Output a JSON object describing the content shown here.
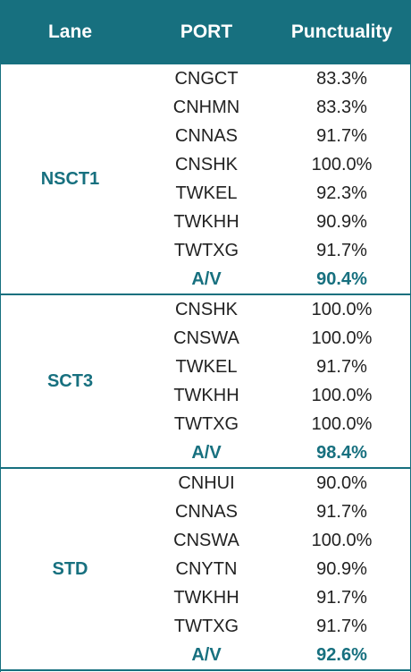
{
  "header": {
    "lane": "Lane",
    "port": "PORT",
    "punctuality": "Punctuality"
  },
  "groups": [
    {
      "lane": "NSCT1",
      "rows": [
        [
          "CNGCT",
          "83.3%"
        ],
        [
          "CNHMN",
          "83.3%"
        ],
        [
          "CNNAS",
          "91.7%"
        ],
        [
          "CNSHK",
          "100.0%"
        ],
        [
          "TWKEL",
          "92.3%"
        ],
        [
          "TWKHH",
          "90.9%"
        ],
        [
          "TWTXG",
          "91.7%"
        ]
      ],
      "avg_label": "A/V",
      "avg": "90.4%"
    },
    {
      "lane": "SCT3",
      "rows": [
        [
          "CNSHK",
          "100.0%"
        ],
        [
          "CNSWA",
          "100.0%"
        ],
        [
          "TWKEL",
          "91.7%"
        ],
        [
          "TWKHH",
          "100.0%"
        ],
        [
          "TWTXG",
          "100.0%"
        ]
      ],
      "avg_label": "A/V",
      "avg": "98.4%"
    },
    {
      "lane": "STD",
      "rows": [
        [
          "CNHUI",
          "90.0%"
        ],
        [
          "CNNAS",
          "91.7%"
        ],
        [
          "CNSWA",
          "100.0%"
        ],
        [
          "CNYTN",
          "90.9%"
        ],
        [
          "TWKHH",
          "91.7%"
        ],
        [
          "TWTXG",
          "91.7%"
        ]
      ],
      "avg_label": "A/V",
      "avg": "92.6%"
    }
  ]
}
